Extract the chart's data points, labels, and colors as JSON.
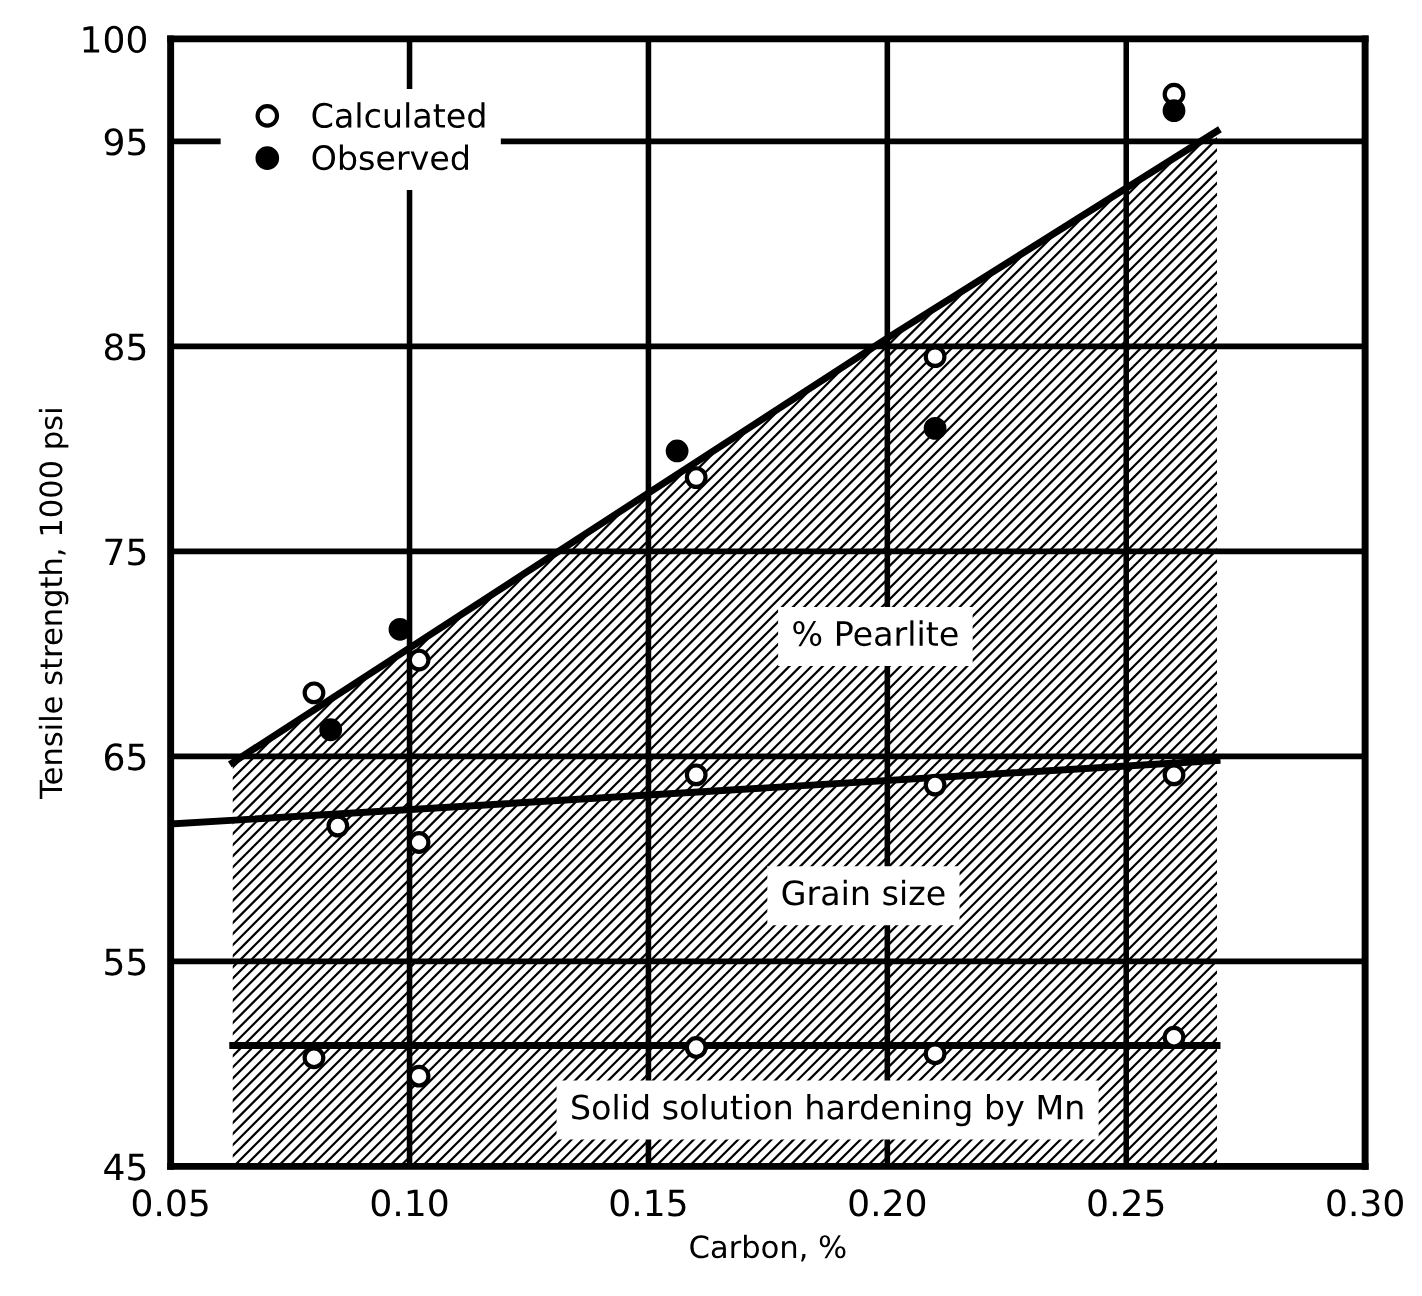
{
  "chart_data": {
    "type": "scatter",
    "xlabel": "Carbon, %",
    "ylabel": "Tensile strength, 1000 psi",
    "xlim": [
      0.05,
      0.3
    ],
    "ylim": [
      45,
      100
    ],
    "xticks": [
      0.05,
      {
        "value": 0.1,
        "label": "0.10"
      },
      0.15,
      {
        "value": 0.2,
        "label": "0.20"
      },
      0.25,
      {
        "value": 0.3,
        "label": "0.30"
      }
    ],
    "yticks": [
      45,
      55,
      65,
      75,
      85,
      95,
      100
    ],
    "grid": true,
    "legend": "top left",
    "series": [
      {
        "type": "area",
        "color": "#000000",
        "x": [
          0.063,
          0.2,
          0.269
        ],
        "values": [
          64.7,
          85.4,
          95.5
        ]
      },
      {
        "type": "line",
        "color": "#000000",
        "x": [
          0.05,
          0.269
        ],
        "values": [
          61.7,
          64.8
        ]
      },
      {
        "type": "line",
        "color": "#000000",
        "x": [
          0.063,
          0.269
        ],
        "values": [
          50.9,
          50.9
        ]
      },
      {
        "name": "Calculated",
        "color": "#ffffff",
        "marker": "circle",
        "x": [
          0.08,
          0.085,
          0.102,
          0.102,
          0.08,
          0.102,
          0.16,
          0.16,
          0.16,
          0.21,
          0.21,
          0.21,
          0.26,
          0.26,
          0.26
        ],
        "values": [
          68.1,
          61.6,
          69.7,
          60.8,
          50.3,
          49.4,
          78.6,
          64.1,
          50.8,
          84.5,
          63.6,
          50.5,
          97.3,
          64.1,
          51.3
        ]
      },
      {
        "name": "Observed",
        "color": "#000000",
        "marker": "circle",
        "x": [
          0.0835,
          0.098,
          0.156,
          0.21,
          0.26
        ],
        "values": [
          66.3,
          71.2,
          79.9,
          81.0,
          96.5
        ]
      }
    ],
    "annotations": [
      "% Pearlite",
      "Grain size",
      "Solid solution hardening by Mn"
    ]
  }
}
